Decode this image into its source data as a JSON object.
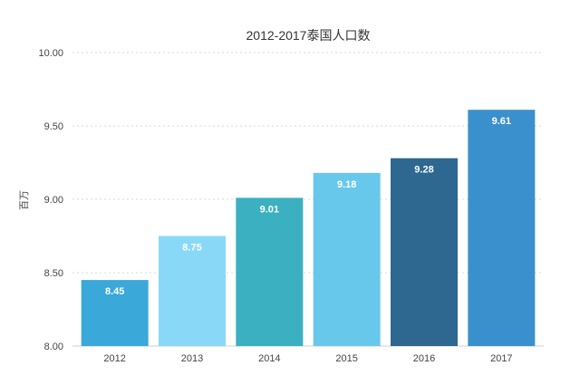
{
  "chart_data": {
    "type": "bar",
    "title": "2012-2017泰国人口数",
    "xlabel": "",
    "ylabel": "百万",
    "categories": [
      "2012",
      "2013",
      "2014",
      "2015",
      "2016",
      "2017"
    ],
    "values": [
      8.45,
      8.75,
      9.01,
      9.18,
      9.28,
      9.61
    ],
    "data_labels": [
      "8.45",
      "8.75",
      "9.01",
      "9.18",
      "9.28",
      "9.61"
    ],
    "ylim": [
      8.0,
      10.0
    ],
    "yticks": [
      8.0,
      8.5,
      9.0,
      9.5,
      10.0
    ],
    "ytick_labels": [
      "8.00",
      "8.50",
      "9.00",
      "9.50",
      "10.00"
    ],
    "bar_colors": [
      "#3aa8d8",
      "#8ad8f8",
      "#3ab0c0",
      "#68c8ec",
      "#2e6890",
      "#3a90cc"
    ],
    "grid": true,
    "legend": "none"
  }
}
